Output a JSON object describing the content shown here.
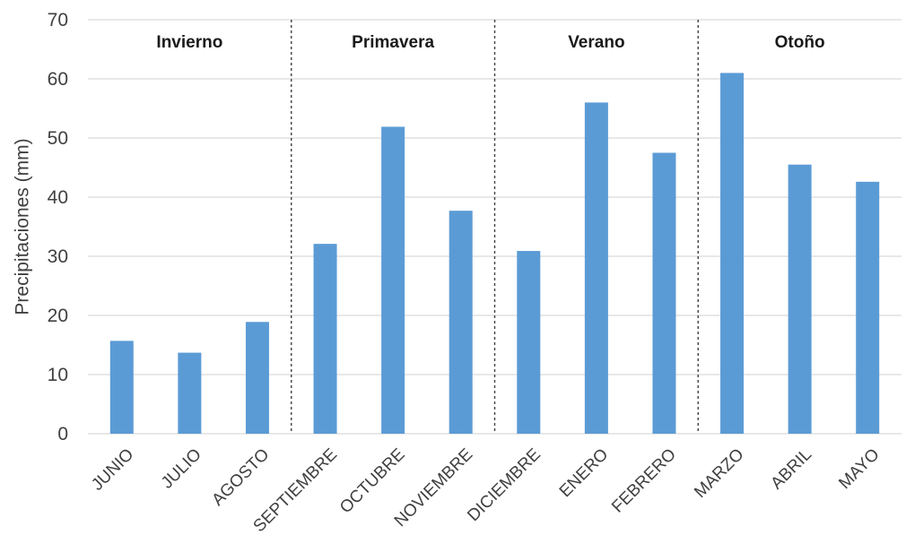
{
  "chart_data": {
    "type": "bar",
    "title": "",
    "xlabel": "",
    "ylabel": "Precipitaciones (mm)",
    "ylim": [
      0,
      70
    ],
    "yticks": [
      0,
      10,
      20,
      30,
      40,
      50,
      60,
      70
    ],
    "grid": true,
    "bar_color": "#5b9bd5",
    "gridline_color": "#d9d9d9",
    "categories": [
      "JUNIO",
      "JULIO",
      "AGOSTO",
      "SEPTIEMBRE",
      "OCTUBRE",
      "NOVIEMBRE",
      "DICIEMBRE",
      "ENERO",
      "FEBRERO",
      "MARZO",
      "ABRIL",
      "MAYO"
    ],
    "values": [
      15.7,
      13.7,
      18.9,
      32.1,
      51.9,
      37.7,
      30.9,
      56.0,
      47.5,
      61.0,
      45.5,
      42.6
    ],
    "seasons": [
      {
        "label": "Invierno",
        "start": 0,
        "end": 2
      },
      {
        "label": "Primavera",
        "start": 3,
        "end": 5
      },
      {
        "label": "Verano",
        "start": 6,
        "end": 8
      },
      {
        "label": "Otoño",
        "start": 9,
        "end": 11
      }
    ]
  }
}
